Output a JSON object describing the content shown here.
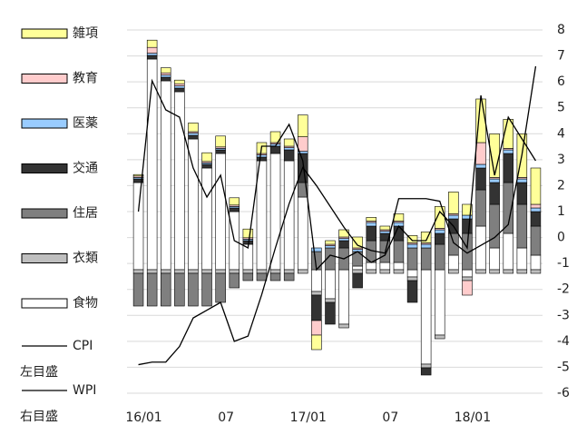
{
  "chart_data": {
    "type": "bar",
    "categories": [
      "16/01",
      null,
      null,
      null,
      null,
      null,
      "07",
      null,
      null,
      null,
      null,
      null,
      "17/01",
      null,
      null,
      null,
      null,
      null,
      "07",
      null,
      null,
      null,
      null,
      null,
      "18/01",
      null,
      null,
      null,
      null,
      null
    ],
    "ylim": [
      -1.7,
      3.3
    ],
    "y2lim": [
      -6,
      8
    ],
    "y2ticks": [
      -6,
      -5,
      -4,
      -3,
      -2,
      -1,
      0,
      1,
      2,
      3,
      4,
      5,
      6,
      7,
      8
    ],
    "grid": true,
    "series": [
      {
        "name": "食物",
        "color": "#ffffff",
        "values": [
          1.2,
          2.9,
          2.6,
          2.45,
          1.8,
          1.4,
          1.6,
          0.8,
          0.35,
          1.5,
          1.6,
          1.5,
          1.0,
          -0.3,
          -0.4,
          -0.75,
          0.05,
          0.1,
          0.1,
          0.1,
          -0.1,
          -1.3,
          -0.9,
          0.2,
          -0.1,
          0.6,
          0.3,
          0.5,
          0.3,
          0.2
        ]
      },
      {
        "name": "衣類",
        "color": "#bfbfbf",
        "values": [
          -0.05,
          -0.05,
          -0.05,
          -0.05,
          -0.05,
          -0.05,
          -0.05,
          -0.05,
          -0.05,
          -0.05,
          -0.05,
          -0.05,
          -0.05,
          -0.05,
          -0.05,
          -0.05,
          -0.05,
          -0.05,
          -0.05,
          -0.05,
          -0.05,
          -0.05,
          -0.05,
          -0.05,
          -0.05,
          -0.05,
          -0.05,
          -0.05,
          -0.05,
          -0.05
        ]
      },
      {
        "name": "住居",
        "color": "#7f7f7f",
        "values": [
          -0.45,
          -0.45,
          -0.45,
          -0.45,
          -0.45,
          -0.45,
          -0.4,
          -0.2,
          -0.1,
          -0.1,
          -0.1,
          -0.1,
          0.2,
          0.25,
          0.3,
          0.3,
          0.2,
          0.3,
          0.3,
          0.3,
          0.3,
          0.3,
          0.35,
          0.3,
          0.5,
          0.5,
          0.6,
          0.7,
          0.6,
          0.4
        ]
      },
      {
        "name": "交通",
        "color": "#333333",
        "values": [
          0.05,
          0.05,
          0.05,
          0.05,
          0.05,
          0.05,
          0.05,
          0.05,
          0.05,
          0.05,
          0.1,
          0.15,
          0.4,
          -0.35,
          -0.3,
          0.1,
          -0.2,
          0.2,
          0.1,
          0.2,
          -0.3,
          -0.1,
          0.15,
          0.2,
          0.2,
          0.3,
          0.3,
          0.4,
          0.3,
          0.2
        ]
      },
      {
        "name": "医薬",
        "color": "#99ccff",
        "values": [
          0.02,
          0.03,
          0.03,
          0.03,
          0.03,
          0.02,
          0.02,
          0.02,
          0.02,
          0.03,
          0.03,
          0.03,
          0.03,
          0.05,
          0.03,
          0.03,
          0.03,
          0.05,
          0.03,
          0.05,
          0.05,
          0.05,
          0.05,
          0.05,
          0.05,
          0.05,
          0.05,
          0.05,
          0.05,
          0.05
        ]
      },
      {
        "name": "教育",
        "color": "#ffcccc",
        "values": [
          0.02,
          0.08,
          0.03,
          0.03,
          0.02,
          0.02,
          0.02,
          0.02,
          0.02,
          0.02,
          0.02,
          0.02,
          0.2,
          -0.2,
          0.02,
          0.02,
          0.02,
          0.02,
          0.02,
          0.02,
          0.02,
          0.02,
          0.02,
          0.02,
          -0.2,
          0.3,
          0.02,
          0.02,
          0.02,
          0.05
        ]
      },
      {
        "name": "雑項",
        "color": "#ffff99",
        "values": [
          0.02,
          0.1,
          0.07,
          0.05,
          0.12,
          0.12,
          0.15,
          0.1,
          0.12,
          0.15,
          0.15,
          0.1,
          0.3,
          -0.2,
          0.05,
          0.1,
          0.15,
          0.05,
          0.05,
          0.1,
          0.1,
          0.15,
          0.3,
          0.3,
          0.15,
          0.6,
          0.6,
          0.4,
          0.6,
          0.5
        ]
      },
      {
        "name": "CPI",
        "type": "line",
        "axis": "y",
        "axis_note": "左目盛",
        "color": "#000000",
        "values": [
          0.8,
          2.6,
          2.2,
          2.1,
          1.4,
          1.0,
          1.3,
          0.4,
          0.3,
          1.7,
          1.7,
          2.0,
          1.5,
          0.0,
          0.2,
          0.15,
          0.25,
          0.1,
          0.2,
          0.6,
          0.4,
          0.4,
          0.8,
          0.6,
          0.3,
          2.4,
          1.3,
          2.1,
          1.8,
          1.5
        ]
      },
      {
        "name": "WPI",
        "type": "line",
        "axis": "y2",
        "axis_note": "右目盛",
        "color": "#000000",
        "values": [
          -4.9,
          -4.8,
          -4.8,
          -4.2,
          -3.1,
          -2.8,
          -2.5,
          -4.0,
          -3.8,
          -2.2,
          -0.4,
          1.3,
          2.7,
          2.0,
          1.2,
          0.4,
          -0.3,
          -0.5,
          -0.6,
          1.5,
          1.5,
          1.5,
          1.4,
          -0.2,
          -0.6,
          -0.3,
          0.0,
          0.5,
          3.2,
          6.6
        ]
      }
    ]
  }
}
